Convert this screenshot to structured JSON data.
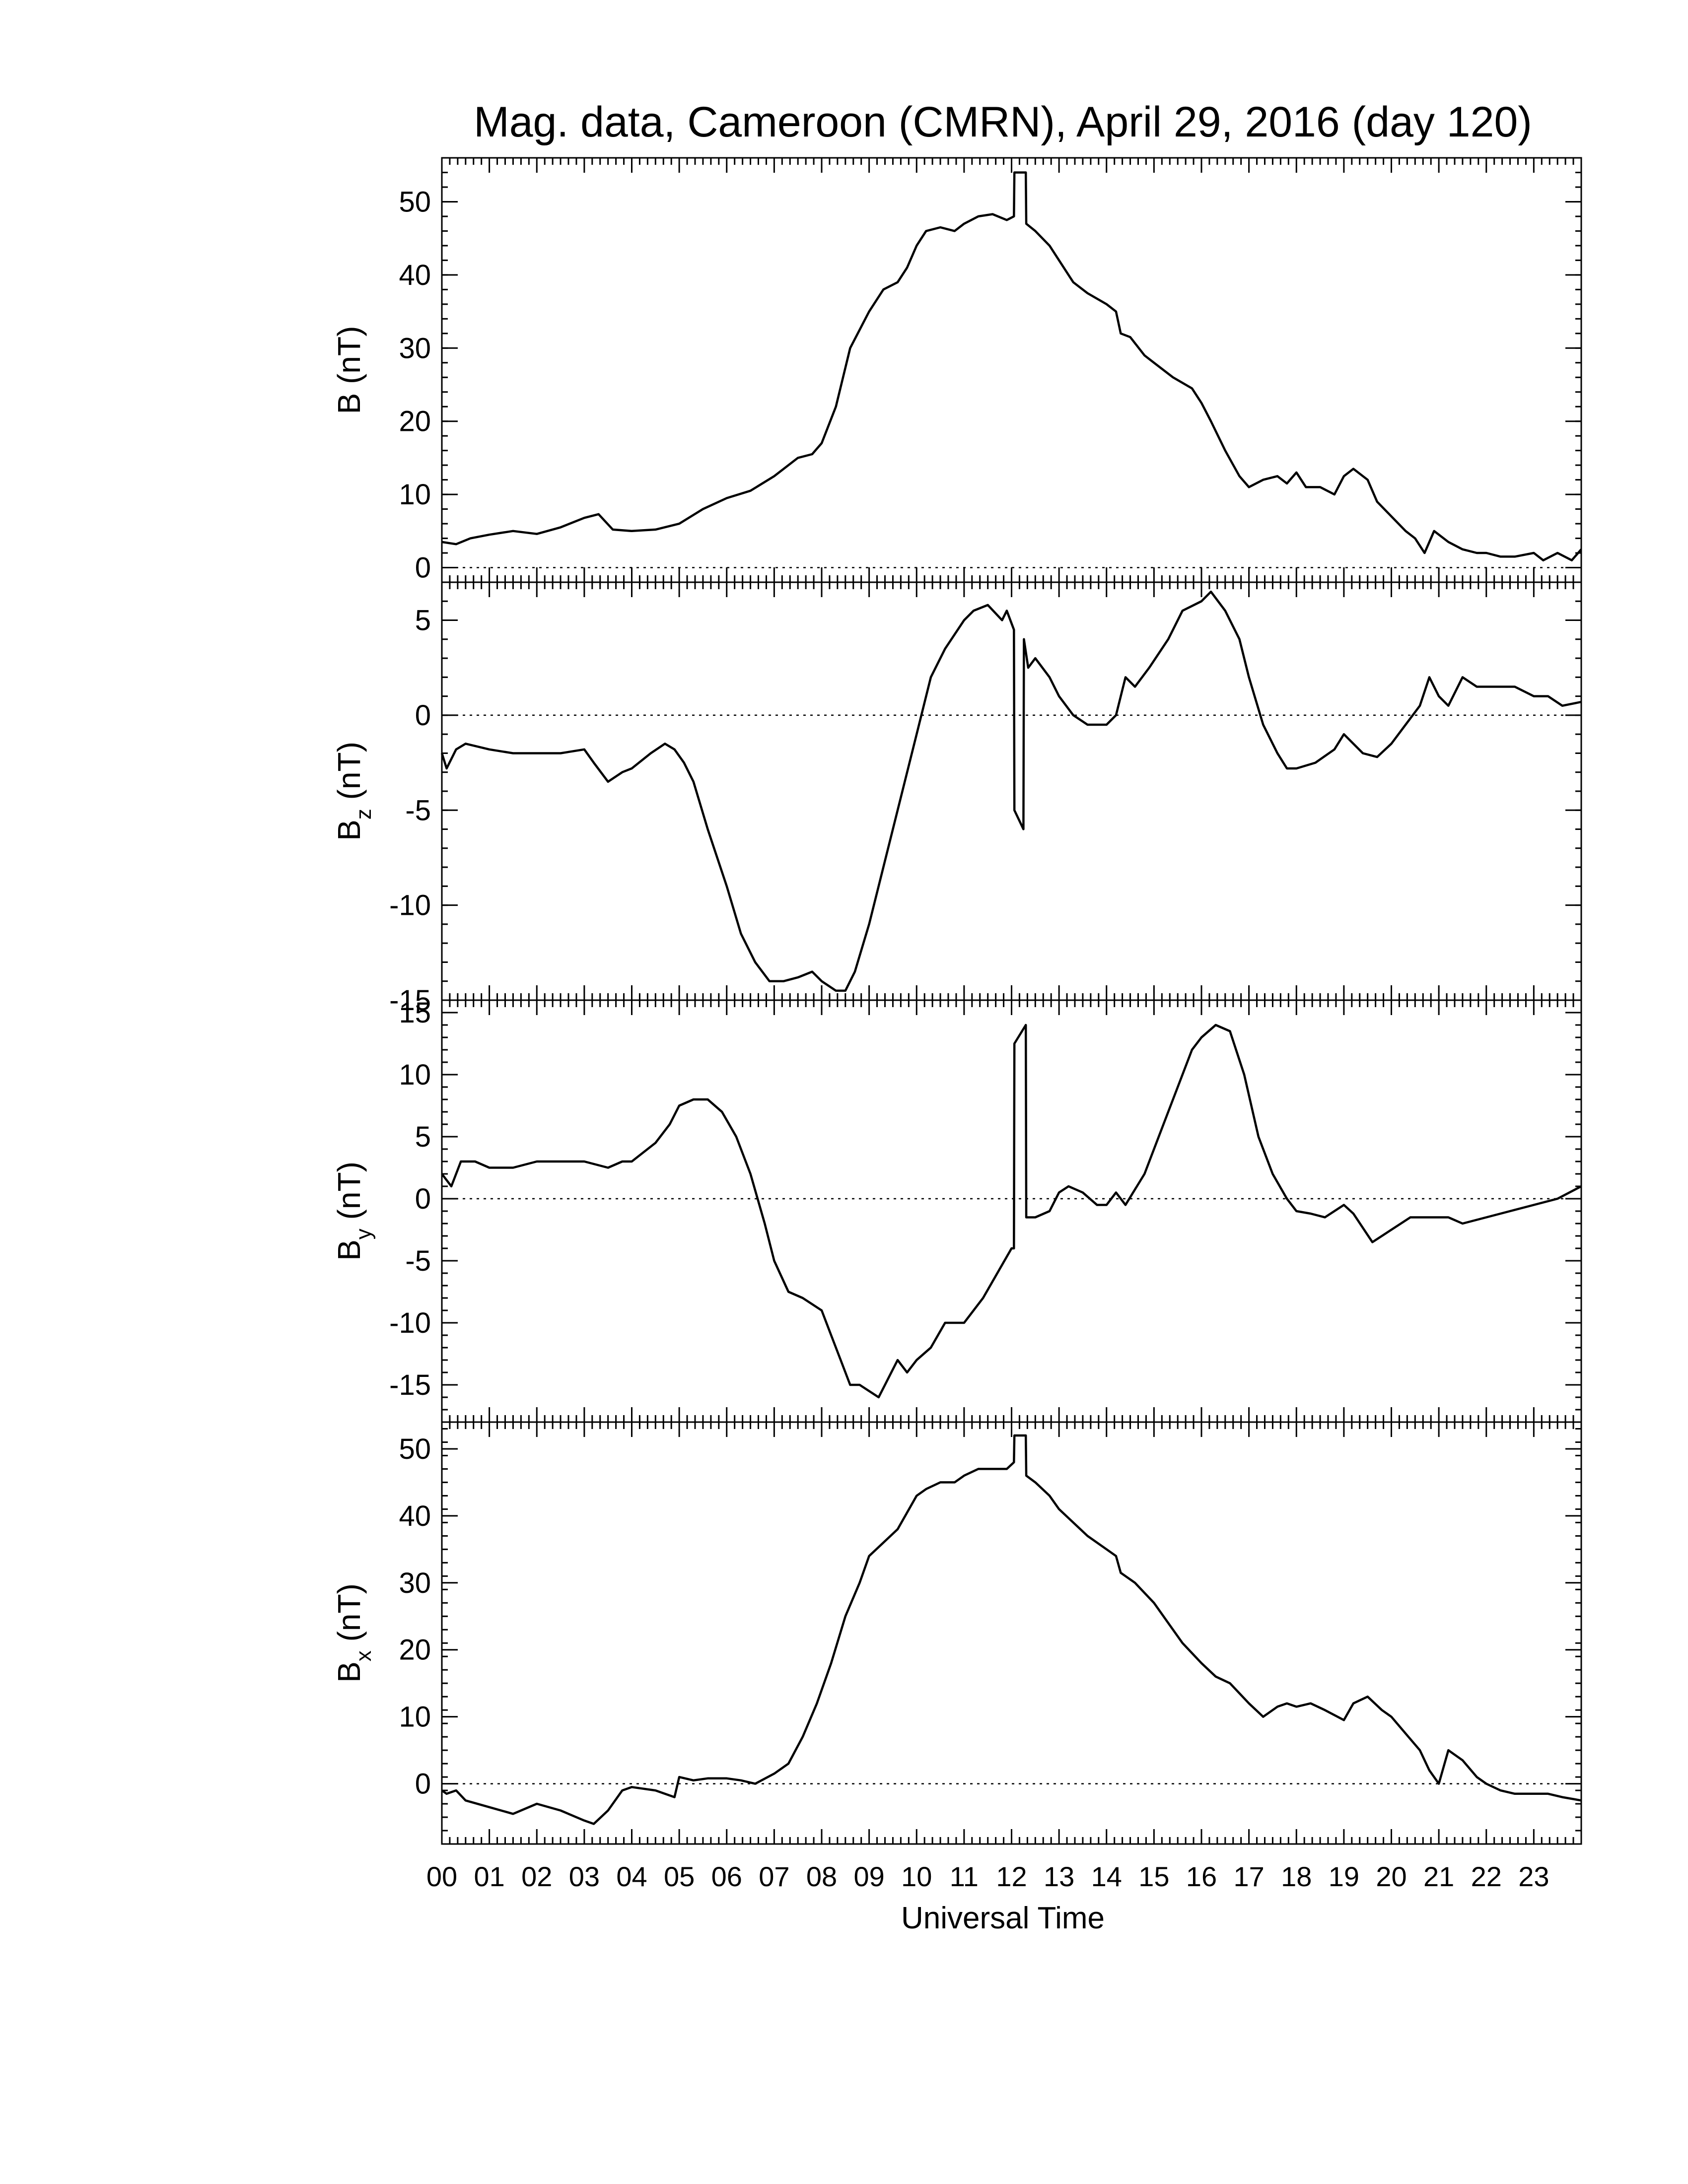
{
  "title": "Mag. data, Cameroon (CMRN), April 29, 2016 (day 120)",
  "xlabel": "Universal Time",
  "chart_data": {
    "type": "line",
    "xlim": [
      0,
      24
    ],
    "x_tick_labels": [
      "00",
      "01",
      "02",
      "03",
      "04",
      "05",
      "06",
      "07",
      "08",
      "09",
      "10",
      "11",
      "12",
      "13",
      "14",
      "15",
      "16",
      "17",
      "18",
      "19",
      "20",
      "21",
      "22",
      "23"
    ],
    "panels": [
      {
        "id": "b",
        "ylabel": "B (nT)",
        "ylabel_main": "B (nT)",
        "ylabel_sub": "",
        "ylabel_tail": "",
        "ylim": [
          -2,
          56
        ],
        "yticks": [
          0,
          10,
          20,
          30,
          40,
          50
        ],
        "zero_line": true,
        "x": [
          0,
          0.3,
          0.6,
          1,
          1.5,
          2,
          2.5,
          3,
          3.3,
          3.6,
          4,
          4.5,
          5,
          5.5,
          6,
          6.5,
          7,
          7.5,
          7.8,
          8,
          8.3,
          8.6,
          9,
          9.3,
          9.6,
          9.8,
          10,
          10.2,
          10.5,
          10.8,
          11,
          11.3,
          11.6,
          11.9,
          12.05,
          12.06,
          12.3,
          12.31,
          12.5,
          12.8,
          13,
          13.3,
          13.6,
          14,
          14.2,
          14.3,
          14.5,
          14.8,
          15,
          15.4,
          15.8,
          16,
          16.2,
          16.5,
          16.8,
          17,
          17.3,
          17.6,
          17.8,
          18,
          18.2,
          18.5,
          18.8,
          19,
          19.2,
          19.5,
          19.7,
          20,
          20.3,
          20.5,
          20.7,
          20.9,
          21.2,
          21.5,
          21.8,
          22,
          22.3,
          22.6,
          23,
          23.2,
          23.5,
          23.8,
          24
        ],
        "y": [
          3.5,
          3.2,
          4,
          4.5,
          5,
          4.6,
          5.5,
          6.8,
          7.3,
          5.2,
          5,
          5.2,
          6,
          8,
          9.5,
          10.5,
          12.5,
          15,
          15.5,
          17,
          22,
          30,
          35,
          38,
          39,
          41,
          44,
          46,
          46.5,
          46,
          47,
          48,
          48.3,
          47.5,
          48,
          54,
          54,
          47,
          46,
          44,
          42,
          39,
          37.5,
          36,
          35,
          32,
          31.5,
          29,
          28,
          26,
          24.5,
          22.5,
          20,
          16,
          12.5,
          11,
          12,
          12.5,
          11.5,
          13,
          11,
          11,
          10,
          12.5,
          13.5,
          12,
          9,
          7,
          5,
          4,
          2,
          5,
          3.5,
          2.5,
          2,
          2,
          1.5,
          1.5,
          2,
          1,
          2,
          1,
          2.5
        ]
      },
      {
        "id": "bz",
        "ylabel": "Bz (nT)",
        "ylabel_main": "B",
        "ylabel_sub": "z",
        "ylabel_tail": " (nT)",
        "ylim": [
          -15,
          7
        ],
        "yticks": [
          5,
          0,
          -5,
          -10,
          -15
        ],
        "zero_line": true,
        "x": [
          0,
          0.1,
          0.3,
          0.5,
          1,
          1.5,
          2,
          2.5,
          3,
          3.2,
          3.5,
          3.8,
          4,
          4.4,
          4.7,
          4.9,
          5.1,
          5.3,
          5.6,
          6,
          6.3,
          6.6,
          6.9,
          7.2,
          7.5,
          7.8,
          8,
          8.3,
          8.5,
          8.7,
          9,
          9.3,
          9.6,
          10,
          10.3,
          10.6,
          11,
          11.2,
          11.5,
          11.8,
          11.9,
          12.05,
          12.06,
          12.25,
          12.26,
          12.35,
          12.5,
          12.8,
          13,
          13.3,
          13.6,
          14,
          14.2,
          14.4,
          14.6,
          14.9,
          15.3,
          15.6,
          16,
          16.2,
          16.5,
          16.8,
          17,
          17.3,
          17.6,
          17.8,
          18,
          18.4,
          18.8,
          19,
          19.4,
          19.7,
          20,
          20.3,
          20.6,
          20.8,
          21,
          21.2,
          21.5,
          21.8,
          22,
          22.3,
          22.6,
          23,
          23.3,
          23.6,
          24
        ],
        "y": [
          -2,
          -2.8,
          -1.8,
          -1.5,
          -1.8,
          -2,
          -2,
          -2,
          -1.8,
          -2.5,
          -3.5,
          -3,
          -2.8,
          -2,
          -1.5,
          -1.8,
          -2.5,
          -3.5,
          -6,
          -9,
          -11.5,
          -13,
          -14,
          -14,
          -13.8,
          -13.5,
          -14,
          -14.5,
          -14.5,
          -13.5,
          -11,
          -8,
          -5,
          -1,
          2,
          3.5,
          5,
          5.5,
          5.8,
          5,
          5.5,
          4.5,
          -5,
          -6,
          4,
          2.5,
          3,
          2,
          1,
          0,
          -0.5,
          -0.5,
          0,
          2,
          1.5,
          2.5,
          4,
          5.5,
          6,
          6.5,
          5.5,
          4,
          2,
          -0.5,
          -2,
          -2.8,
          -2.8,
          -2.5,
          -1.8,
          -1,
          -2,
          -2.2,
          -1.5,
          -0.5,
          0.5,
          2,
          1,
          0.5,
          2,
          1.5,
          1.5,
          1.5,
          1.5,
          1,
          1,
          0.5,
          0.7
        ]
      },
      {
        "id": "by",
        "ylabel": "By (nT)",
        "ylabel_main": "B",
        "ylabel_sub": "y",
        "ylabel_tail": " (nT)",
        "ylim": [
          -18,
          16
        ],
        "yticks": [
          15,
          10,
          5,
          0,
          -5,
          -10,
          -15
        ],
        "zero_line": true,
        "x": [
          0,
          0.2,
          0.4,
          0.7,
          1,
          1.5,
          2,
          2.5,
          3,
          3.5,
          3.8,
          4,
          4.5,
          4.8,
          5,
          5.3,
          5.6,
          5.9,
          6.2,
          6.5,
          6.8,
          7,
          7.3,
          7.6,
          8,
          8.2,
          8.4,
          8.6,
          8.8,
          9,
          9.2,
          9.4,
          9.6,
          9.8,
          10,
          10.3,
          10.6,
          11,
          11.4,
          11.7,
          12,
          12.05,
          12.06,
          12.3,
          12.31,
          12.5,
          12.8,
          13,
          13.2,
          13.5,
          13.8,
          14,
          14.2,
          14.4,
          14.8,
          15.2,
          15.5,
          15.8,
          16,
          16.3,
          16.6,
          16.9,
          17.2,
          17.5,
          17.8,
          18,
          18.3,
          18.6,
          19,
          19.2,
          19.6,
          20,
          20.4,
          20.8,
          21.2,
          21.5,
          22,
          22.5,
          23,
          23.5,
          24
        ],
        "y": [
          2,
          1,
          3,
          3,
          2.5,
          2.5,
          3,
          3,
          3,
          2.5,
          3,
          3,
          4.5,
          6,
          7.5,
          8,
          8,
          7,
          5,
          2,
          -2,
          -5,
          -7.5,
          -8,
          -9,
          -11,
          -13,
          -15,
          -15,
          -15.5,
          -16,
          -14.5,
          -13,
          -14,
          -13,
          -12,
          -10,
          -10,
          -8,
          -6,
          -4,
          -4,
          12.5,
          14,
          -1.5,
          -1.5,
          -1,
          0.5,
          1,
          0.5,
          -0.5,
          -0.5,
          0.5,
          -0.5,
          2,
          6,
          9,
          12,
          13,
          14,
          13.5,
          10,
          5,
          2,
          0,
          -1,
          -1.2,
          -1.5,
          -0.5,
          -1.2,
          -3.5,
          -2.5,
          -1.5,
          -1.5,
          -1.5,
          -2,
          -1.5,
          -1,
          -0.5,
          0,
          1
        ]
      },
      {
        "id": "bx",
        "ylabel": "Bx (nT)",
        "ylabel_main": "B",
        "ylabel_sub": "x",
        "ylabel_tail": " (nT)",
        "ylim": [
          -9,
          54
        ],
        "yticks": [
          50,
          40,
          30,
          20,
          10,
          0
        ],
        "zero_line": true,
        "x": [
          0,
          0.1,
          0.3,
          0.5,
          1,
          1.5,
          2,
          2.5,
          3,
          3.2,
          3.5,
          3.8,
          4,
          4.5,
          4.9,
          5,
          5.3,
          5.6,
          6,
          6.3,
          6.6,
          7,
          7.3,
          7.6,
          7.9,
          8.2,
          8.5,
          8.8,
          9,
          9.3,
          9.6,
          10,
          10.2,
          10.5,
          10.8,
          11,
          11.3,
          11.6,
          11.9,
          12.05,
          12.06,
          12.3,
          12.31,
          12.5,
          12.8,
          13,
          13.3,
          13.6,
          14,
          14.2,
          14.3,
          14.6,
          15,
          15.3,
          15.6,
          16,
          16.3,
          16.6,
          16.8,
          17,
          17.3,
          17.6,
          17.8,
          18,
          18.3,
          18.6,
          19,
          19.2,
          19.5,
          19.8,
          20,
          20.3,
          20.6,
          20.8,
          21,
          21.2,
          21.5,
          21.8,
          22,
          22.3,
          22.6,
          23,
          23.3,
          23.6,
          24
        ],
        "y": [
          -1,
          -1.5,
          -1,
          -2.5,
          -3.5,
          -4.5,
          -3,
          -4,
          -5.5,
          -6,
          -4,
          -1,
          -0.5,
          -1,
          -2,
          1,
          0.5,
          0.8,
          0.8,
          0.5,
          0,
          1.5,
          3,
          7,
          12,
          18,
          25,
          30,
          34,
          36,
          38,
          43,
          44,
          45,
          45,
          46,
          47,
          47,
          47,
          48,
          52,
          52,
          46,
          45,
          43,
          41,
          39,
          37,
          35,
          34,
          31.5,
          30,
          27,
          24,
          21,
          18,
          16,
          15,
          13.5,
          12,
          10,
          11.5,
          12,
          11.5,
          12,
          11,
          9.5,
          12,
          13,
          11,
          10,
          7.5,
          5,
          2,
          0,
          5,
          3.5,
          1,
          0,
          -1,
          -1.5,
          -1.5,
          -1.5,
          -2,
          -2.5
        ]
      }
    ]
  }
}
